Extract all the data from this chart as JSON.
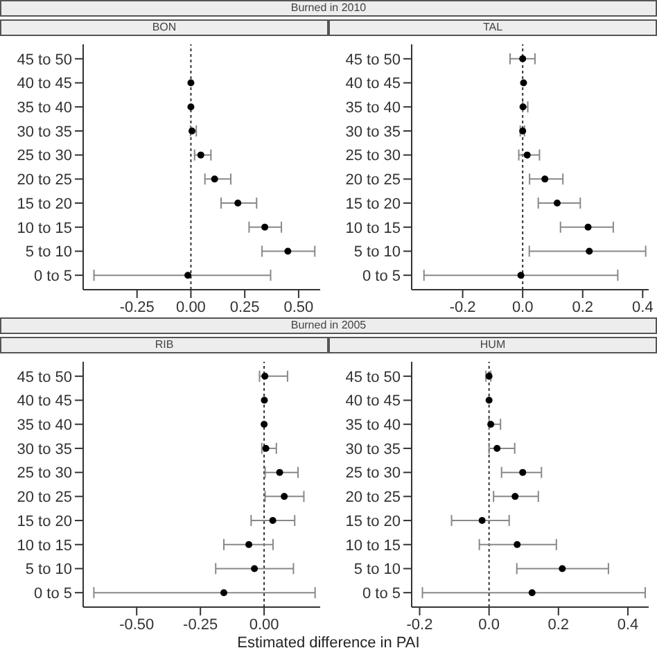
{
  "chart_data": [
    {
      "type": "scatter",
      "title": "BON",
      "annotations": [
        "Burned in 2010"
      ],
      "orientation": "horizontal",
      "categories": [
        "45 to 50",
        "40 to 45",
        "35 to 40",
        "30 to 35",
        "25 to 30",
        "20 to 25",
        "15 to 20",
        "10 to 15",
        "5 to 10",
        "0 to 5"
      ],
      "series": [
        {
          "color": "#000000",
          "values": [
            null,
            0.0,
            0.0,
            0.005,
            0.046,
            0.11,
            0.218,
            0.343,
            0.45,
            -0.014
          ],
          "errors": [
            null,
            null,
            null,
            [
              -0.002,
              0.025
            ],
            [
              0.017,
              0.093
            ],
            [
              0.065,
              0.185
            ],
            [
              0.14,
              0.305
            ],
            [
              0.27,
              0.42
            ],
            [
              0.33,
              0.575
            ],
            [
              -0.45,
              0.37
            ]
          ]
        }
      ],
      "xlim": [
        -0.5,
        0.6
      ],
      "xticks": [
        {
          "value": -0.25,
          "label": "-0.25"
        },
        {
          "value": 0,
          "label": "0.00"
        },
        {
          "value": 0.25,
          "label": "0.25"
        },
        {
          "value": 0.5,
          "label": "0.50"
        }
      ],
      "ref_lines": [
        {
          "axis": "x",
          "value": 0,
          "color": "#333333",
          "line_style": "dotted"
        }
      ],
      "marker": "circle",
      "grid": false
    },
    {
      "type": "scatter",
      "title": "TAL",
      "orientation": "horizontal",
      "categories": [
        "45 to 50",
        "40 to 45",
        "35 to 40",
        "30 to 35",
        "25 to 30",
        "20 to 25",
        "15 to 20",
        "10 to 15",
        "5 to 10",
        "0 to 5"
      ],
      "series": [
        {
          "color": "#000000",
          "values": [
            0.0,
            0.003,
            0.001,
            0.0,
            0.015,
            0.074,
            0.115,
            0.218,
            0.222,
            -0.006
          ],
          "errors": [
            [
              -0.042,
              0.041
            ],
            null,
            [
              0.0,
              0.017
            ],
            [
              -0.008,
              0.006
            ],
            [
              -0.013,
              0.056
            ],
            [
              0.023,
              0.134
            ],
            [
              0.052,
              0.192
            ],
            [
              0.126,
              0.302
            ],
            [
              0.022,
              0.41
            ],
            [
              -0.329,
              0.317
            ]
          ]
        }
      ],
      "xlim": [
        -0.37,
        0.42
      ],
      "xticks": [
        {
          "value": -0.2,
          "label": "-0.2"
        },
        {
          "value": 0,
          "label": "0.0"
        },
        {
          "value": 0.2,
          "label": "0.2"
        },
        {
          "value": 0.4,
          "label": "0.4"
        }
      ],
      "ref_lines": [
        {
          "axis": "x",
          "value": 0,
          "color": "#333333",
          "line_style": "dotted"
        }
      ],
      "marker": "circle",
      "grid": false
    },
    {
      "type": "scatter",
      "title": "RIB",
      "annotations": [
        "Burned in 2005"
      ],
      "xlabel": "Estimated difference in PAI",
      "orientation": "horizontal",
      "categories": [
        "45 to 50",
        "40 to 45",
        "35 to 40",
        "30 to 35",
        "25 to 30",
        "20 to 25",
        "15 to 20",
        "10 to 15",
        "5 to 10",
        "0 to 5"
      ],
      "series": [
        {
          "color": "#000000",
          "values": [
            0.003,
            0.001,
            0.0,
            0.007,
            0.061,
            0.079,
            0.034,
            -0.06,
            -0.038,
            -0.158
          ],
          "errors": [
            [
              -0.018,
              0.092
            ],
            null,
            null,
            [
              -0.009,
              0.048
            ],
            [
              0.004,
              0.133
            ],
            [
              0.004,
              0.156
            ],
            [
              -0.051,
              0.12
            ],
            [
              -0.158,
              0.035
            ],
            [
              -0.19,
              0.115
            ],
            [
              -0.668,
              0.2
            ]
          ]
        }
      ],
      "xlim": [
        -0.71,
        0.22
      ],
      "xticks": [
        {
          "value": -0.5,
          "label": "-0.50"
        },
        {
          "value": -0.25,
          "label": "-0.25"
        },
        {
          "value": 0,
          "label": "0.00"
        }
      ],
      "ref_lines": [
        {
          "axis": "x",
          "value": 0,
          "color": "#333333",
          "line_style": "dotted"
        }
      ],
      "marker": "circle",
      "grid": false
    },
    {
      "type": "scatter",
      "title": "HUM",
      "orientation": "horizontal",
      "categories": [
        "45 to 50",
        "40 to 45",
        "35 to 40",
        "30 to 35",
        "25 to 30",
        "20 to 25",
        "15 to 20",
        "10 to 15",
        "5 to 10",
        "0 to 5"
      ],
      "series": [
        {
          "color": "#000000",
          "values": [
            0.0,
            0.0,
            0.005,
            0.023,
            0.097,
            0.075,
            -0.02,
            0.081,
            0.211,
            0.124
          ],
          "errors": [
            [
              -0.009,
              0.005
            ],
            null,
            [
              0.0,
              0.033
            ],
            [
              0.0,
              0.074
            ],
            [
              0.036,
              0.151
            ],
            [
              0.013,
              0.142
            ],
            [
              -0.108,
              0.058
            ],
            [
              -0.028,
              0.194
            ],
            [
              0.08,
              0.344
            ],
            [
              -0.192,
              0.45
            ]
          ]
        }
      ],
      "xlim": [
        -0.223,
        0.46
      ],
      "xticks": [
        {
          "value": -0.2,
          "label": "-0.2"
        },
        {
          "value": 0,
          "label": "0.0"
        },
        {
          "value": 0.2,
          "label": "0.2"
        },
        {
          "value": 0.4,
          "label": "0.4"
        }
      ],
      "ref_lines": [
        {
          "axis": "x",
          "value": 0,
          "color": "#333333",
          "line_style": "dotted"
        }
      ],
      "marker": "circle",
      "grid": false
    }
  ]
}
